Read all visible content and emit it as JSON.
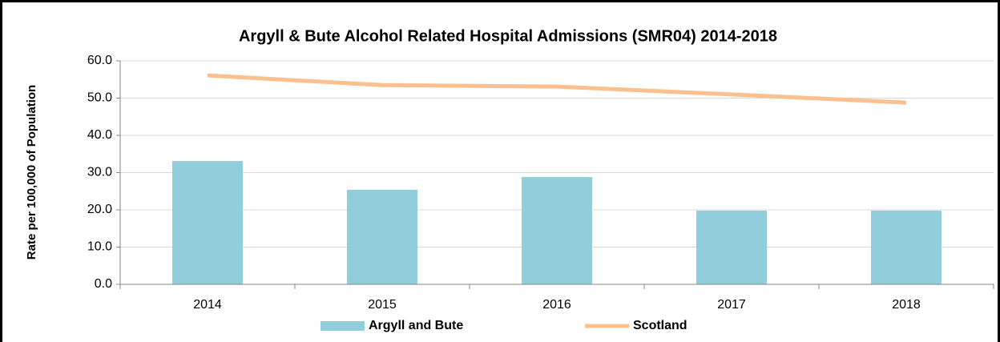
{
  "chart_data": {
    "type": "bar",
    "title": "Argyll & Bute Alcohol Related Hospital Admissions (SMR04) 2014-2018",
    "y_label": "Rate per 100,000 of Population",
    "categories": [
      "2014",
      "2015",
      "2016",
      "2017",
      "2018"
    ],
    "series": [
      {
        "name": "Argyll and Bute",
        "type": "bar",
        "color": "#92cddc",
        "values": [
          33.1,
          25.4,
          28.8,
          19.8,
          19.8
        ]
      },
      {
        "name": "Scotland",
        "type": "line",
        "color": "#fac090",
        "values": [
          56.1,
          53.5,
          53.1,
          51.0,
          48.8
        ]
      }
    ],
    "ylim": [
      0,
      60
    ],
    "yticks": [
      {
        "value": 0,
        "label": "0.0"
      },
      {
        "value": 10,
        "label": "10.0"
      },
      {
        "value": 20,
        "label": "20.0"
      },
      {
        "value": 30,
        "label": "30.0"
      },
      {
        "value": 40,
        "label": "40.0"
      },
      {
        "value": 50,
        "label": "50.0"
      },
      {
        "value": 60,
        "label": "60.0"
      }
    ],
    "grid": true,
    "legend": "bottom"
  }
}
